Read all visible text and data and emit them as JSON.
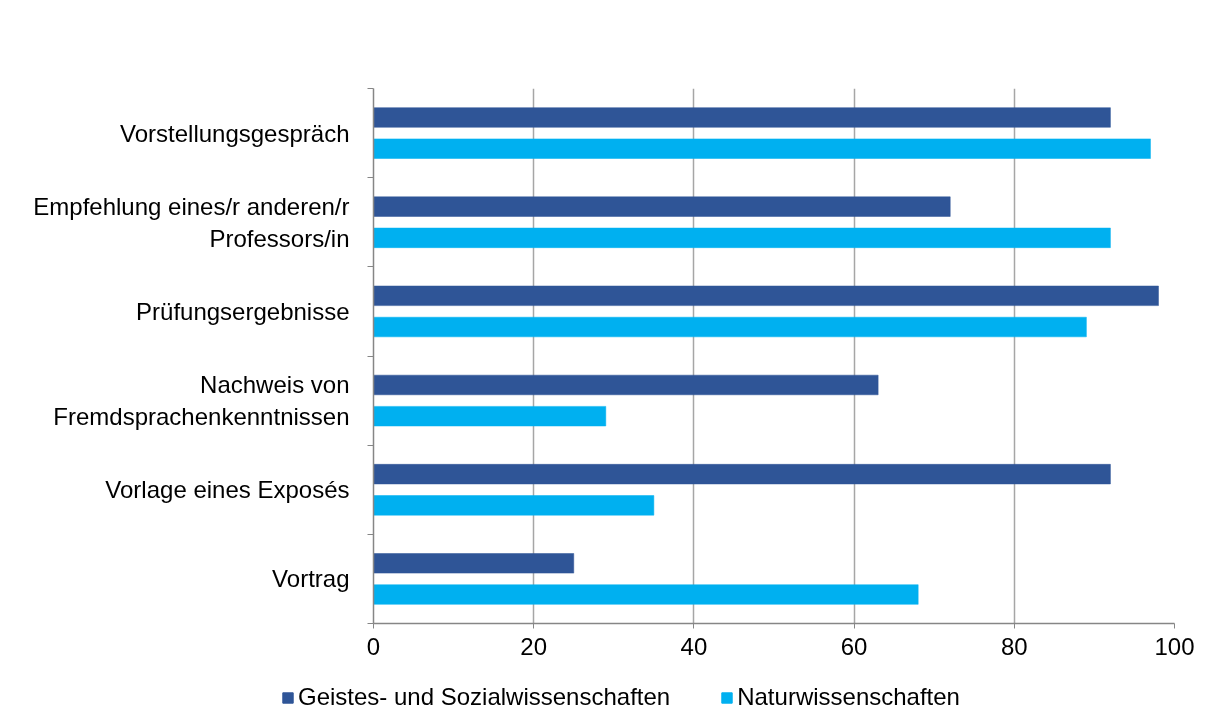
{
  "chart_data": {
    "type": "bar",
    "orientation": "horizontal",
    "categories": [
      "Vorstellungsgespräch",
      "Empfehlung eines/r anderen/r\nProfessors/in",
      "Prüfungsergebnisse",
      "Nachweis von\nFremdsprachenkenntnissen",
      "Vorlage eines Exposés",
      "Vortrag"
    ],
    "series": [
      {
        "name": "Geistes- und Sozialwissenschaften",
        "color": "#2f5597",
        "values": [
          92,
          72,
          98,
          63,
          92,
          25
        ]
      },
      {
        "name": "Naturwissenschaften",
        "color": "#00b0f0",
        "values": [
          97,
          92,
          89,
          29,
          35,
          68
        ]
      }
    ],
    "xlim": [
      0,
      100
    ],
    "xticks": [
      0,
      20,
      40,
      60,
      80,
      100
    ],
    "grid": "x",
    "legend": "bottom"
  }
}
